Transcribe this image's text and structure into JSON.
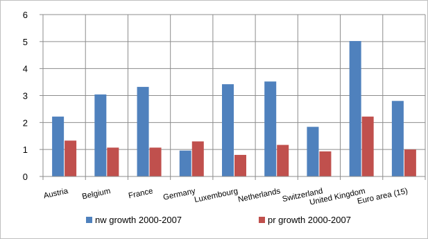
{
  "chart_data": {
    "type": "bar",
    "title": "",
    "xlabel": "",
    "ylabel": "",
    "categories": [
      "Austria",
      "Belgium",
      "France",
      "Germany",
      "Luxembourg",
      "Netherlands",
      "Switzerland",
      "United Kingdom",
      "Euro area (15)"
    ],
    "series": [
      {
        "name": "nw growth 2000-2007",
        "color": "#4f81bd",
        "values": [
          2.22,
          3.04,
          3.32,
          0.96,
          3.42,
          3.52,
          1.84,
          5.02,
          2.8
        ]
      },
      {
        "name": "pr growth 2000-2007",
        "color": "#c0504d",
        "values": [
          1.33,
          1.07,
          1.07,
          1.3,
          0.8,
          1.17,
          0.93,
          2.22,
          1.0
        ]
      }
    ],
    "ylim": [
      0,
      6
    ],
    "yticks": [
      "0",
      "1",
      "2",
      "3",
      "4",
      "5",
      "6"
    ],
    "grid": true,
    "legend_position": "bottom"
  }
}
